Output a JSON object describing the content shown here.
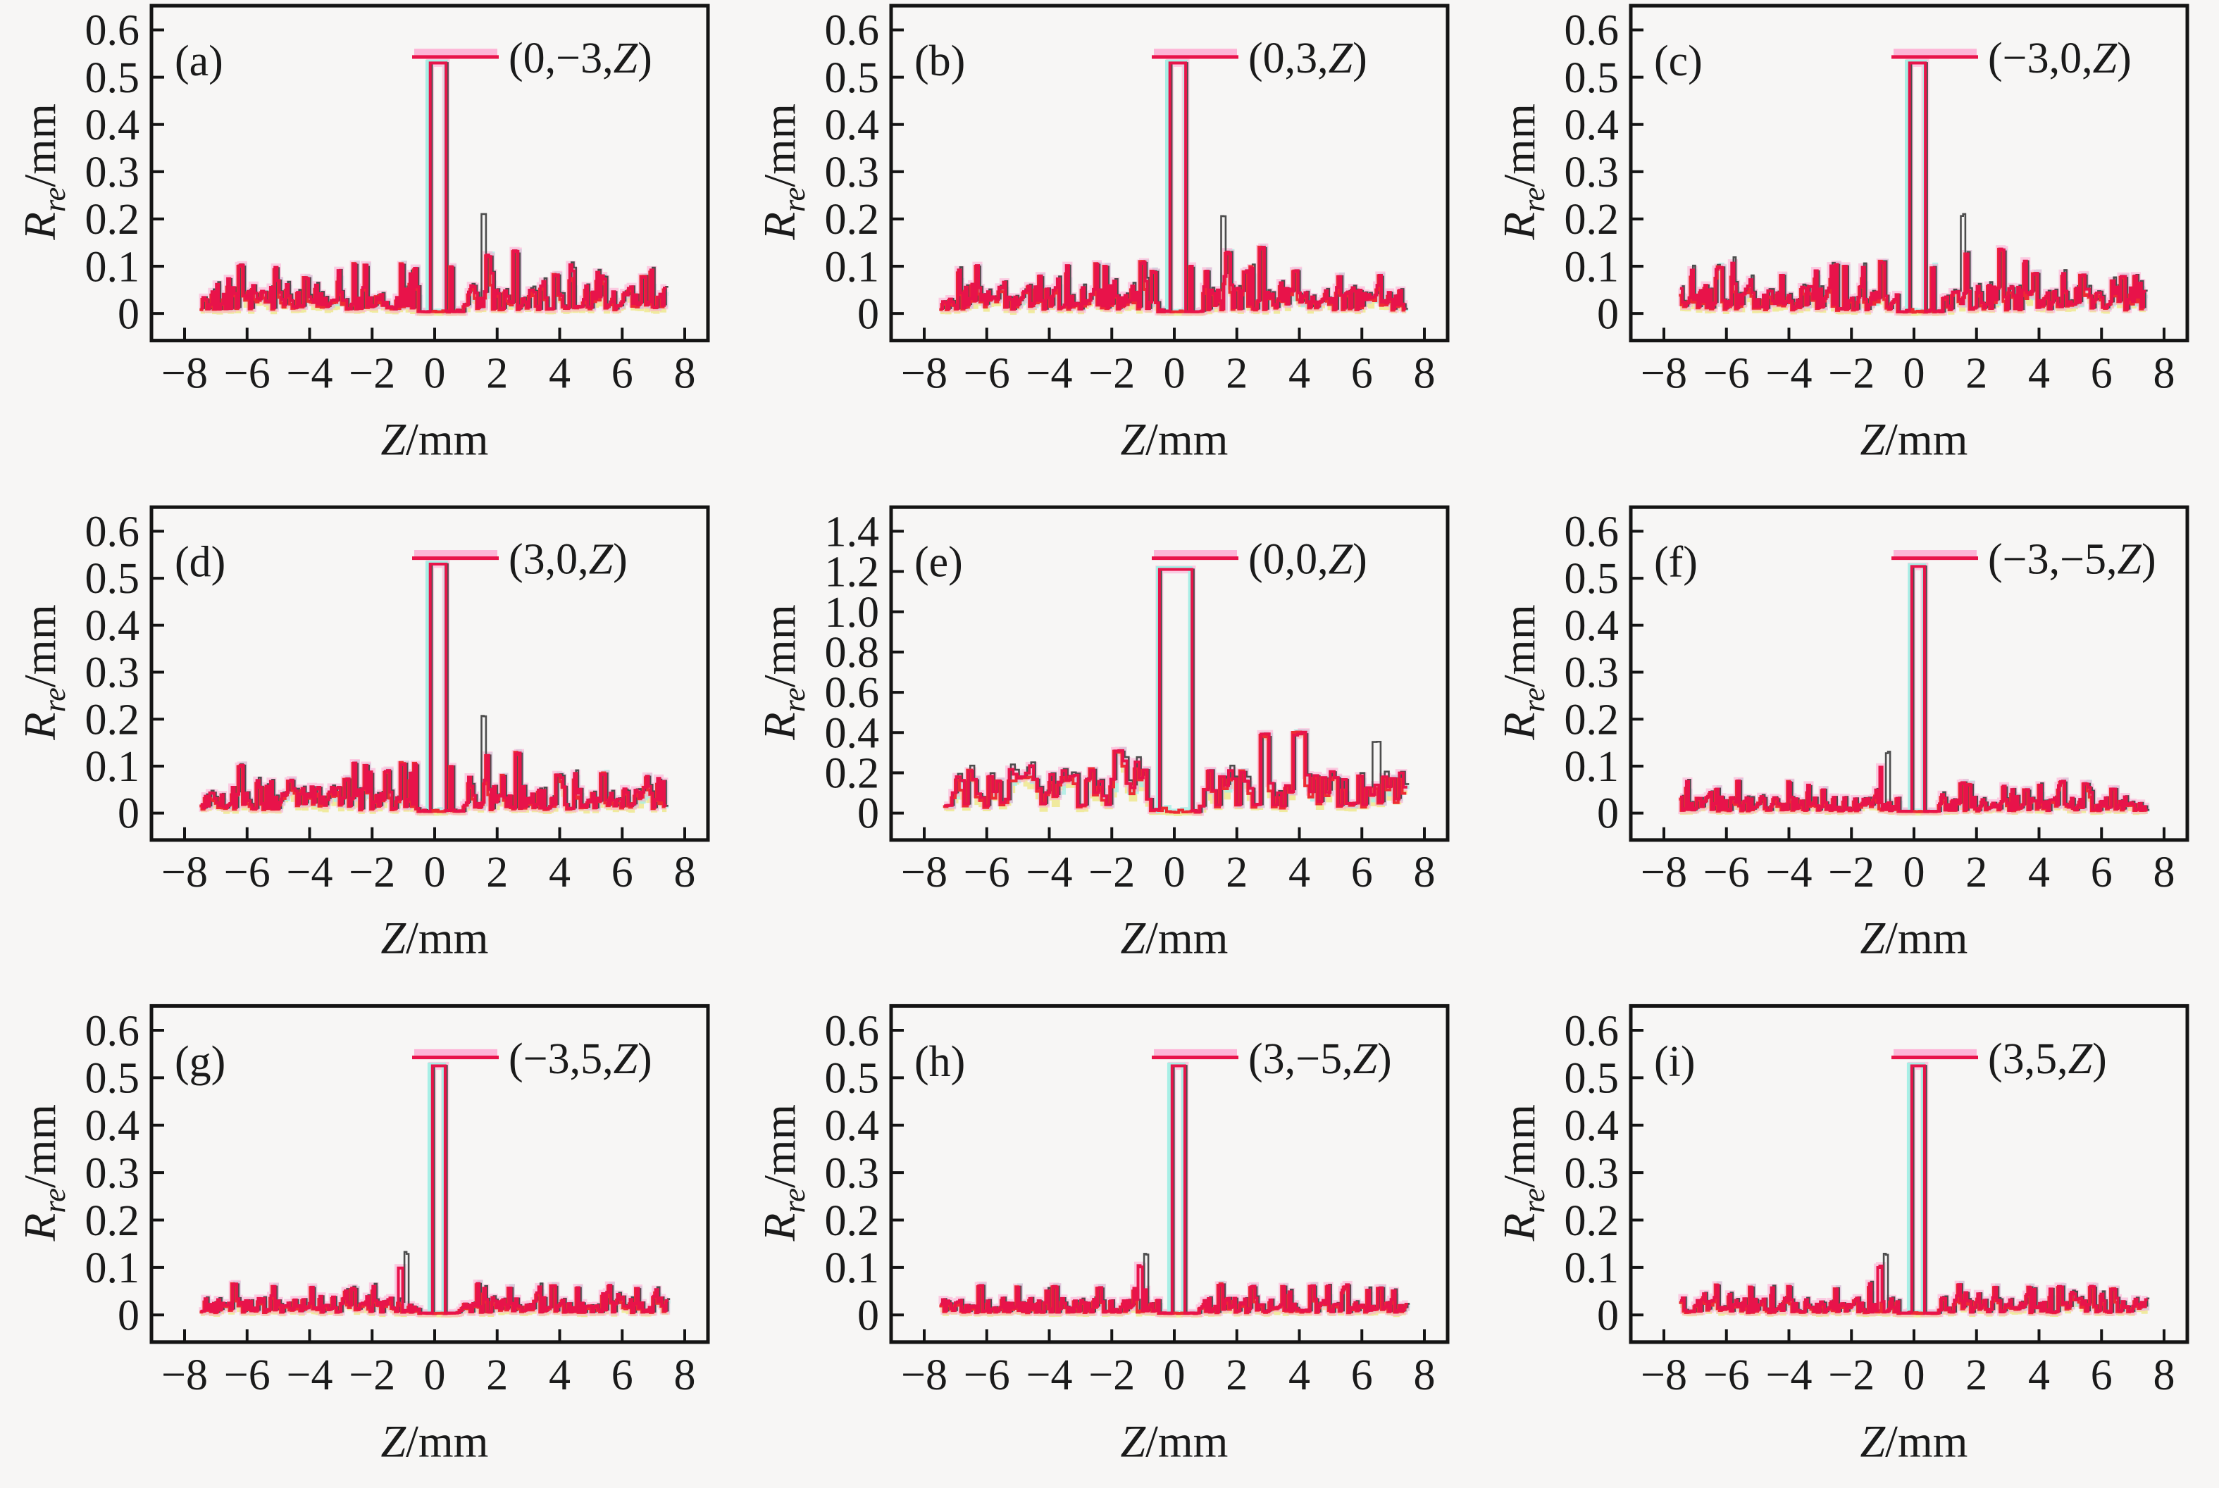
{
  "figure": {
    "background": "#f7f6f5",
    "type_note": "3x3 grid of step-line reconstruction-resolution plots"
  },
  "colors": {
    "crimson": "#e8134a",
    "red": "#ee2b33",
    "pink_glow": "#ffa6d0",
    "cyan": "#a8efe6",
    "yellow": "#efe999",
    "gray_trace": "#4d4d4d",
    "axis": "#141414",
    "text": "#1a1a1a"
  },
  "axis_labels": {
    "x_italic": "Z",
    "x_rest": "/mm",
    "y_italic": "R",
    "y_sub": "re",
    "y_rest": "/mm"
  },
  "x_ticks": {
    "values": [
      -8,
      -6,
      -4,
      -2,
      0,
      2,
      4,
      6,
      8
    ],
    "labels": [
      "−8",
      "−6",
      "−4",
      "−2",
      "0",
      "2",
      "4",
      "6",
      "8"
    ]
  },
  "chart_data": [
    {
      "type": "line",
      "style": "step",
      "panel_label": "(a)",
      "legend": "(0,−3,Z)",
      "xlabel": "Z/mm",
      "ylabel": "Rre/mm",
      "xlim": [
        -8.9,
        8.8
      ],
      "ylim": [
        0,
        0.6
      ],
      "ytick_values": [
        0,
        0.1,
        0.2,
        0.3,
        0.4,
        0.5,
        0.6
      ],
      "ytick_labels": [
        "0",
        "0.1",
        "0.2",
        "0.3",
        "0.4",
        "0.5",
        "0.6"
      ],
      "x_range": [
        -7.45,
        7.45
      ],
      "step": 0.072,
      "seed": 101,
      "noise": {
        "base": 0.032,
        "spike": 0.062,
        "spike_prob": 0.1,
        "quiet": [
          -0.5,
          0.95
        ]
      },
      "main_peak": {
        "x": 0.12,
        "h": 0.53,
        "w": 0.55
      },
      "secondary_peaks": [
        {
          "x": -6.2,
          "h": 0.103
        },
        {
          "x": -5.0,
          "h": 0.072
        },
        {
          "x": -4.1,
          "h": 0.076
        },
        {
          "x": -2.55,
          "h": 0.106
        },
        {
          "x": -2.2,
          "h": 0.102
        },
        {
          "x": -1.05,
          "h": 0.106
        },
        {
          "x": -0.62,
          "h": 0.096
        },
        {
          "x": 0.55,
          "h": 0.1
        },
        {
          "x": 1.5,
          "h": 0.212,
          "w": 0.14,
          "s": 1
        },
        {
          "x": 1.72,
          "h": 0.125
        },
        {
          "x": 2.6,
          "h": 0.132,
          "w": 0.12
        },
        {
          "x": 3.9,
          "h": 0.083
        },
        {
          "x": 5.35,
          "h": 0.08
        },
        {
          "x": 6.7,
          "h": 0.079
        }
      ]
    },
    {
      "type": "line",
      "style": "step",
      "panel_label": "(b)",
      "legend": "(0,3,Z)",
      "xlabel": "Z/mm",
      "ylabel": "Rre/mm",
      "xlim": [
        -8.9,
        8.8
      ],
      "ylim": [
        0,
        0.6
      ],
      "ytick_values": [
        0,
        0.1,
        0.2,
        0.3,
        0.4,
        0.5,
        0.6
      ],
      "ytick_labels": [
        "0",
        "0.1",
        "0.2",
        "0.3",
        "0.4",
        "0.5",
        "0.6"
      ],
      "x_range": [
        -7.45,
        7.45
      ],
      "step": 0.072,
      "seed": 202,
      "noise": {
        "base": 0.032,
        "spike": 0.062,
        "spike_prob": 0.1,
        "quiet": [
          -0.5,
          0.95
        ]
      },
      "main_peak": {
        "x": 0.12,
        "h": 0.53,
        "w": 0.55
      },
      "secondary_peaks": [
        {
          "x": -6.3,
          "h": 0.101
        },
        {
          "x": -4.3,
          "h": 0.08
        },
        {
          "x": -2.5,
          "h": 0.105
        },
        {
          "x": -2.2,
          "h": 0.1
        },
        {
          "x": -1.0,
          "h": 0.11
        },
        {
          "x": -0.65,
          "h": 0.09
        },
        {
          "x": 0.55,
          "h": 0.1
        },
        {
          "x": 1.05,
          "h": 0.09
        },
        {
          "x": 1.5,
          "h": 0.212,
          "w": 0.14,
          "s": 1
        },
        {
          "x": 1.73,
          "h": 0.13
        },
        {
          "x": 2.3,
          "h": 0.09
        },
        {
          "x": 2.8,
          "h": 0.14,
          "w": 0.12
        },
        {
          "x": 3.9,
          "h": 0.092
        },
        {
          "x": 5.3,
          "h": 0.08
        },
        {
          "x": 6.6,
          "h": 0.08
        }
      ]
    },
    {
      "type": "line",
      "style": "step",
      "panel_label": "(c)",
      "legend": "(−3,0,Z)",
      "xlabel": "Z/mm",
      "ylabel": "Rre/mm",
      "xlim": [
        -8.9,
        8.8
      ],
      "ylim": [
        0,
        0.6
      ],
      "ytick_values": [
        0,
        0.1,
        0.2,
        0.3,
        0.4,
        0.5,
        0.6
      ],
      "ytick_labels": [
        "0",
        "0.1",
        "0.2",
        "0.3",
        "0.4",
        "0.5",
        "0.6"
      ],
      "x_range": [
        -7.45,
        7.45
      ],
      "step": 0.072,
      "seed": 303,
      "noise": {
        "base": 0.032,
        "spike": 0.062,
        "spike_prob": 0.1,
        "quiet": [
          -0.5,
          0.95
        ]
      },
      "main_peak": {
        "x": 0.12,
        "h": 0.53,
        "w": 0.55
      },
      "secondary_peaks": [
        {
          "x": -6.2,
          "h": 0.1
        },
        {
          "x": -4.2,
          "h": 0.08
        },
        {
          "x": -2.5,
          "h": 0.103
        },
        {
          "x": -2.2,
          "h": 0.1
        },
        {
          "x": -1.0,
          "h": 0.11
        },
        {
          "x": 0.6,
          "h": 0.1
        },
        {
          "x": 1.5,
          "h": 0.212,
          "w": 0.14,
          "s": 1
        },
        {
          "x": 1.7,
          "h": 0.13
        },
        {
          "x": 2.8,
          "h": 0.135,
          "w": 0.12
        },
        {
          "x": 3.9,
          "h": 0.086
        },
        {
          "x": 5.4,
          "h": 0.082
        },
        {
          "x": 6.7,
          "h": 0.078
        }
      ]
    },
    {
      "type": "line",
      "style": "step",
      "panel_label": "(d)",
      "legend": "(3,0,Z)",
      "xlabel": "Z/mm",
      "ylabel": "Rre/mm",
      "xlim": [
        -8.9,
        8.8
      ],
      "ylim": [
        0,
        0.6
      ],
      "ytick_values": [
        0,
        0.1,
        0.2,
        0.3,
        0.4,
        0.5,
        0.6
      ],
      "ytick_labels": [
        "0",
        "0.1",
        "0.2",
        "0.3",
        "0.4",
        "0.5",
        "0.6"
      ],
      "x_range": [
        -7.45,
        7.45
      ],
      "step": 0.072,
      "seed": 404,
      "noise": {
        "base": 0.032,
        "spike": 0.062,
        "spike_prob": 0.1,
        "quiet": [
          -0.5,
          0.95
        ]
      },
      "main_peak": {
        "x": 0.12,
        "h": 0.53,
        "w": 0.55
      },
      "secondary_peaks": [
        {
          "x": -6.2,
          "h": 0.103
        },
        {
          "x": -4.6,
          "h": 0.07
        },
        {
          "x": -2.8,
          "h": 0.073
        },
        {
          "x": -2.55,
          "h": 0.108
        },
        {
          "x": -2.2,
          "h": 0.102
        },
        {
          "x": -1.5,
          "h": 0.09
        },
        {
          "x": -1.0,
          "h": 0.107
        },
        {
          "x": -0.6,
          "h": 0.105
        },
        {
          "x": 0.55,
          "h": 0.1
        },
        {
          "x": 1.5,
          "h": 0.212,
          "w": 0.14,
          "s": 1
        },
        {
          "x": 1.7,
          "h": 0.125
        },
        {
          "x": 2.2,
          "h": 0.08
        },
        {
          "x": 2.65,
          "h": 0.13,
          "w": 0.12
        },
        {
          "x": 3.95,
          "h": 0.083
        },
        {
          "x": 5.4,
          "h": 0.085
        },
        {
          "x": 6.8,
          "h": 0.078
        }
      ]
    },
    {
      "type": "line",
      "style": "step",
      "panel_label": "(e)",
      "legend": "(0,0,Z)",
      "xlabel": "Z/mm",
      "ylabel": "Rre/mm",
      "xlim": [
        -8.9,
        8.8
      ],
      "ylim": [
        0,
        1.4
      ],
      "ytick_values": [
        0,
        0.2,
        0.4,
        0.6,
        0.8,
        1.0,
        1.2,
        1.4
      ],
      "ytick_labels": [
        "0",
        "0.2",
        "0.4",
        "0.6",
        "0.8",
        "1.0",
        "1.2",
        "1.4"
      ],
      "x_range": [
        -7.3,
        7.45
      ],
      "step": 0.13,
      "seed": 505,
      "noise": {
        "base": 0.12,
        "spike": 0.07,
        "spike_prob": 0.3,
        "quiet": [
          -0.75,
          0.85
        ]
      },
      "main_peak": {
        "x": 0.05,
        "h": 1.21,
        "w": 1.0
      },
      "secondary_peaks": [
        {
          "x": -6.4,
          "h": 0.17
        },
        {
          "x": -5.6,
          "h": 0.16
        },
        {
          "x": -4.9,
          "h": 0.18
        },
        {
          "x": -4.4,
          "h": 0.17
        },
        {
          "x": -3.4,
          "h": 0.165
        },
        {
          "x": -2.6,
          "h": 0.22,
          "w": 0.2
        },
        {
          "x": -1.8,
          "h": 0.31,
          "w": 0.22
        },
        {
          "x": -1.55,
          "h": 0.225
        },
        {
          "x": -0.95,
          "h": 0.22
        },
        {
          "x": 1.15,
          "h": 0.215
        },
        {
          "x": 1.5,
          "h": 0.185
        },
        {
          "x": 2.2,
          "h": 0.21
        },
        {
          "x": 2.85,
          "h": 0.39,
          "w": 0.26
        },
        {
          "x": 4.0,
          "h": 0.4,
          "w": 0.28
        },
        {
          "x": 4.8,
          "h": 0.175
        },
        {
          "x": 5.15,
          "h": 0.175
        },
        {
          "x": 6.35,
          "h": 0.36,
          "w": 0.26,
          "s": 1
        },
        {
          "x": 6.95,
          "h": 0.175
        }
      ]
    },
    {
      "type": "line",
      "style": "step",
      "panel_label": "(f)",
      "legend": "(−3,−5,Z)",
      "xlabel": "Z/mm",
      "ylabel": "Rre/mm",
      "xlim": [
        -8.9,
        8.8
      ],
      "ylim": [
        0,
        0.6
      ],
      "ytick_values": [
        0,
        0.1,
        0.2,
        0.3,
        0.4,
        0.5,
        0.6
      ],
      "ytick_labels": [
        "0",
        "0.1",
        "0.2",
        "0.3",
        "0.4",
        "0.5",
        "0.6"
      ],
      "x_range": [
        -7.45,
        7.45
      ],
      "step": 0.068,
      "seed": 606,
      "noise": {
        "base": 0.02,
        "spike": 0.038,
        "spike_prob": 0.1,
        "quiet": [
          -0.45,
          0.8
        ]
      },
      "main_peak": {
        "x": 0.15,
        "h": 0.525,
        "w": 0.42
      },
      "secondary_peaks": [
        {
          "x": -6.3,
          "h": 0.052
        },
        {
          "x": -5.6,
          "h": 0.068
        },
        {
          "x": -4.0,
          "h": 0.067
        },
        {
          "x": -2.9,
          "h": 0.05
        },
        {
          "x": -1.05,
          "h": 0.1,
          "s": 2
        },
        {
          "x": -0.9,
          "h": 0.132,
          "s": 1
        },
        {
          "x": 1.55,
          "h": 0.065
        },
        {
          "x": 1.75,
          "h": 0.062
        },
        {
          "x": 2.9,
          "h": 0.057
        },
        {
          "x": 3.6,
          "h": 0.05
        },
        {
          "x": 4.75,
          "h": 0.068
        },
        {
          "x": 5.5,
          "h": 0.064
        },
        {
          "x": 6.4,
          "h": 0.052
        }
      ]
    },
    {
      "type": "line",
      "style": "step",
      "panel_label": "(g)",
      "legend": "(−3,5,Z)",
      "xlabel": "Z/mm",
      "ylabel": "Rre/mm",
      "xlim": [
        -8.9,
        8.8
      ],
      "ylim": [
        0,
        0.6
      ],
      "ytick_values": [
        0,
        0.1,
        0.2,
        0.3,
        0.4,
        0.5,
        0.6
      ],
      "ytick_labels": [
        "0",
        "0.1",
        "0.2",
        "0.3",
        "0.4",
        "0.5",
        "0.6"
      ],
      "x_range": [
        -7.45,
        7.45
      ],
      "step": 0.068,
      "seed": 707,
      "noise": {
        "base": 0.02,
        "spike": 0.038,
        "spike_prob": 0.1,
        "quiet": [
          -0.45,
          0.8
        ]
      },
      "main_peak": {
        "x": 0.12,
        "h": 0.525,
        "w": 0.42
      },
      "secondary_peaks": [
        {
          "x": -6.4,
          "h": 0.066
        },
        {
          "x": -5.15,
          "h": 0.062
        },
        {
          "x": -3.9,
          "h": 0.058
        },
        {
          "x": -2.6,
          "h": 0.055
        },
        {
          "x": -1.1,
          "h": 0.102,
          "s": 2
        },
        {
          "x": -0.95,
          "h": 0.132,
          "s": 1
        },
        {
          "x": 1.4,
          "h": 0.066
        },
        {
          "x": 2.4,
          "h": 0.058
        },
        {
          "x": 3.8,
          "h": 0.062
        },
        {
          "x": 4.6,
          "h": 0.058
        },
        {
          "x": 5.6,
          "h": 0.062
        },
        {
          "x": 6.5,
          "h": 0.056
        }
      ]
    },
    {
      "type": "line",
      "style": "step",
      "panel_label": "(h)",
      "legend": "(3,−5,Z)",
      "xlabel": "Z/mm",
      "ylabel": "Rre/mm",
      "xlim": [
        -8.9,
        8.8
      ],
      "ylim": [
        0,
        0.6
      ],
      "ytick_values": [
        0,
        0.1,
        0.2,
        0.3,
        0.4,
        0.5,
        0.6
      ],
      "ytick_labels": [
        "0",
        "0.1",
        "0.2",
        "0.3",
        "0.4",
        "0.5",
        "0.6"
      ],
      "x_range": [
        -7.45,
        7.45
      ],
      "step": 0.068,
      "seed": 808,
      "noise": {
        "base": 0.02,
        "spike": 0.038,
        "spike_prob": 0.1,
        "quiet": [
          -0.45,
          0.8
        ]
      },
      "main_peak": {
        "x": 0.12,
        "h": 0.525,
        "w": 0.42
      },
      "secondary_peaks": [
        {
          "x": -6.2,
          "h": 0.062
        },
        {
          "x": -5.0,
          "h": 0.06
        },
        {
          "x": -3.8,
          "h": 0.06
        },
        {
          "x": -2.4,
          "h": 0.058
        },
        {
          "x": -1.1,
          "h": 0.105,
          "s": 2
        },
        {
          "x": -0.95,
          "h": 0.132,
          "s": 1
        },
        {
          "x": 1.5,
          "h": 0.065
        },
        {
          "x": 2.5,
          "h": 0.06
        },
        {
          "x": 3.5,
          "h": 0.06
        },
        {
          "x": 4.4,
          "h": 0.062
        },
        {
          "x": 5.5,
          "h": 0.06
        },
        {
          "x": 6.6,
          "h": 0.058
        }
      ]
    },
    {
      "type": "line",
      "style": "step",
      "panel_label": "(i)",
      "legend": "(3,5,Z)",
      "xlabel": "Z/mm",
      "ylabel": "Rre/mm",
      "xlim": [
        -8.9,
        8.8
      ],
      "ylim": [
        0,
        0.6
      ],
      "ytick_values": [
        0,
        0.1,
        0.2,
        0.3,
        0.4,
        0.5,
        0.6
      ],
      "ytick_labels": [
        "0",
        "0.1",
        "0.2",
        "0.3",
        "0.4",
        "0.5",
        "0.6"
      ],
      "x_range": [
        -7.45,
        7.45
      ],
      "step": 0.068,
      "seed": 909,
      "noise": {
        "base": 0.02,
        "spike": 0.038,
        "spike_prob": 0.1,
        "quiet": [
          -0.45,
          0.8
        ]
      },
      "main_peak": {
        "x": 0.12,
        "h": 0.525,
        "w": 0.42
      },
      "secondary_peaks": [
        {
          "x": -6.3,
          "h": 0.064
        },
        {
          "x": -5.2,
          "h": 0.06
        },
        {
          "x": -4.0,
          "h": 0.06
        },
        {
          "x": -2.5,
          "h": 0.056
        },
        {
          "x": -1.1,
          "h": 0.103,
          "s": 2
        },
        {
          "x": -0.95,
          "h": 0.132,
          "s": 1
        },
        {
          "x": 1.45,
          "h": 0.065
        },
        {
          "x": 2.6,
          "h": 0.06
        },
        {
          "x": 3.7,
          "h": 0.06
        },
        {
          "x": 4.7,
          "h": 0.06
        },
        {
          "x": 5.7,
          "h": 0.06
        },
        {
          "x": 6.4,
          "h": 0.055
        }
      ]
    }
  ]
}
